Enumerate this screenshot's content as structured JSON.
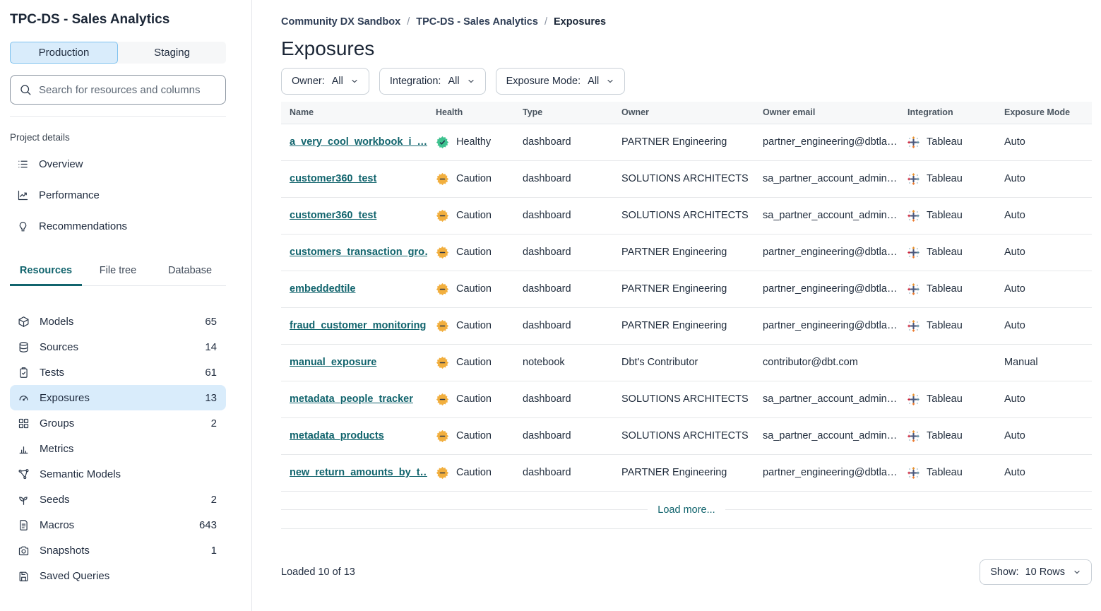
{
  "app": {
    "title": "TPC-DS - Sales Analytics"
  },
  "colors": {
    "accent_teal": "#11646d",
    "healthy_green": "#3ec28f",
    "caution_yellow": "#f2af3e",
    "active_blue_bg": "#d9ecfb",
    "active_blue_border": "#7ec1ee"
  },
  "sidebar": {
    "environment_toggle": {
      "production": "Production",
      "staging": "Staging",
      "selected": "Production"
    },
    "search": {
      "placeholder": "Search for resources and columns",
      "icon": "search-icon"
    },
    "project_details": {
      "label": "Project details",
      "items": [
        {
          "label": "Overview",
          "icon": "list-icon"
        },
        {
          "label": "Performance",
          "icon": "performance-icon"
        },
        {
          "label": "Recommendations",
          "icon": "lightbulb-icon"
        }
      ]
    },
    "tabs": [
      {
        "label": "Resources",
        "active": true
      },
      {
        "label": "File tree",
        "active": false
      },
      {
        "label": "Database",
        "active": false
      }
    ],
    "resources": [
      {
        "label": "Models",
        "count": "65",
        "icon": "cube-icon",
        "active": false
      },
      {
        "label": "Sources",
        "count": "14",
        "icon": "database-icon",
        "active": false
      },
      {
        "label": "Tests",
        "count": "61",
        "icon": "clipboard-check-icon",
        "active": false
      },
      {
        "label": "Exposures",
        "count": "13",
        "icon": "gauge-icon",
        "active": true
      },
      {
        "label": "Groups",
        "count": "2",
        "icon": "grid-icon",
        "active": false
      },
      {
        "label": "Metrics",
        "count": "",
        "icon": "bar-chart-icon",
        "active": false
      },
      {
        "label": "Semantic Models",
        "count": "",
        "icon": "network-icon",
        "active": false
      },
      {
        "label": "Seeds",
        "count": "2",
        "icon": "seedling-icon",
        "active": false
      },
      {
        "label": "Macros",
        "count": "643",
        "icon": "file-text-icon",
        "active": false
      },
      {
        "label": "Snapshots",
        "count": "1",
        "icon": "camera-icon",
        "active": false
      },
      {
        "label": "Saved Queries",
        "count": "",
        "icon": "save-icon",
        "active": false
      }
    ]
  },
  "main": {
    "breadcrumb": {
      "separator": "/",
      "items": [
        {
          "label": "Community DX Sandbox",
          "current": false
        },
        {
          "label": "TPC-DS - Sales Analytics",
          "current": false
        },
        {
          "label": "Exposures",
          "current": true
        }
      ]
    },
    "page_title": "Exposures",
    "filters": [
      {
        "label": "Owner:",
        "value": "All"
      },
      {
        "label": "Integration:",
        "value": "All"
      },
      {
        "label": "Exposure Mode:",
        "value": "All"
      }
    ],
    "table": {
      "columns": [
        "Name",
        "Health",
        "Type",
        "Owner",
        "Owner email",
        "Integration",
        "Exposure Mode"
      ],
      "rows": [
        {
          "name": "a_very_cool_workbook_i_…",
          "health": "Healthy",
          "health_status": "healthy",
          "type": "dashboard",
          "owner": "PARTNER Engineering",
          "owner_email": "partner_engineering@dbtla…",
          "integration": "Tableau",
          "exposure_mode": "Auto"
        },
        {
          "name": "customer360_test",
          "health": "Caution",
          "health_status": "caution",
          "type": "dashboard",
          "owner": "SOLUTIONS ARCHITECTS",
          "owner_email": "sa_partner_account_admin…",
          "integration": "Tableau",
          "exposure_mode": "Auto"
        },
        {
          "name": "customer360_test",
          "health": "Caution",
          "health_status": "caution",
          "type": "dashboard",
          "owner": "SOLUTIONS ARCHITECTS",
          "owner_email": "sa_partner_account_admin…",
          "integration": "Tableau",
          "exposure_mode": "Auto"
        },
        {
          "name": "customers_transaction_gro…",
          "health": "Caution",
          "health_status": "caution",
          "type": "dashboard",
          "owner": "PARTNER Engineering",
          "owner_email": "partner_engineering@dbtla…",
          "integration": "Tableau",
          "exposure_mode": "Auto"
        },
        {
          "name": "embeddedtile",
          "health": "Caution",
          "health_status": "caution",
          "type": "dashboard",
          "owner": "PARTNER Engineering",
          "owner_email": "partner_engineering@dbtla…",
          "integration": "Tableau",
          "exposure_mode": "Auto"
        },
        {
          "name": "fraud_customer_monitoring",
          "health": "Caution",
          "health_status": "caution",
          "type": "dashboard",
          "owner": "PARTNER Engineering",
          "owner_email": "partner_engineering@dbtla…",
          "integration": "Tableau",
          "exposure_mode": "Auto"
        },
        {
          "name": "manual_exposure",
          "health": "Caution",
          "health_status": "caution",
          "type": "notebook",
          "owner": "Dbt's Contributor",
          "owner_email": "contributor@dbt.com",
          "integration": "",
          "exposure_mode": "Manual"
        },
        {
          "name": "metadata_people_tracker",
          "health": "Caution",
          "health_status": "caution",
          "type": "dashboard",
          "owner": "SOLUTIONS ARCHITECTS",
          "owner_email": "sa_partner_account_admin…",
          "integration": "Tableau",
          "exposure_mode": "Auto"
        },
        {
          "name": "metadata_products",
          "health": "Caution",
          "health_status": "caution",
          "type": "dashboard",
          "owner": "SOLUTIONS ARCHITECTS",
          "owner_email": "sa_partner_account_admin…",
          "integration": "Tableau",
          "exposure_mode": "Auto"
        },
        {
          "name": "new_return_amounts_by_t…",
          "health": "Caution",
          "health_status": "caution",
          "type": "dashboard",
          "owner": "PARTNER Engineering",
          "owner_email": "partner_engineering@dbtla…",
          "integration": "Tableau",
          "exposure_mode": "Auto"
        }
      ]
    },
    "load_more_label": "Load more...",
    "footer": {
      "loaded_text": "Loaded 10 of 13",
      "show_label": "Show:",
      "show_value": "10 Rows"
    }
  }
}
